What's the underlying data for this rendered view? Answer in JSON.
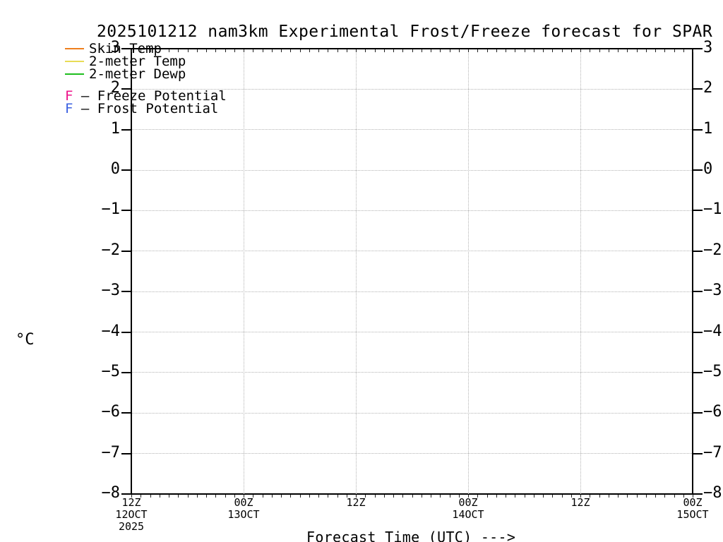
{
  "title": "2025101212 nam3km Experimental Frost/Freeze forecast for SPAR",
  "y_axis_unit": "°C",
  "x_axis_title": "Forecast Time (UTC) --->",
  "legend": {
    "lines": [
      {
        "swatch_color": "#ee7f1e",
        "label": "Skin Temp"
      },
      {
        "swatch_color": "#e8dc55",
        "label": "2-meter Temp"
      },
      {
        "swatch_color": "#1ebe1e",
        "label": "2-meter Dewp"
      }
    ],
    "flags": [
      {
        "symbol": "F",
        "symbol_color": "#ee1289",
        "label": " — Freeze Potential"
      },
      {
        "symbol": "F",
        "symbol_color": "#3a5fe0",
        "label": " — Frost Potential"
      }
    ]
  },
  "chart_data": {
    "type": "line",
    "title": "2025101212 nam3km Experimental Frost/Freeze forecast for SPAR",
    "xlabel": "Forecast Time (UTC) --->",
    "ylabel": "°C",
    "ylim": [
      -8,
      3
    ],
    "y_ticks": [
      3,
      2,
      1,
      0,
      -1,
      -2,
      -3,
      -4,
      -5,
      -6,
      -7,
      -8
    ],
    "x_ticks": [
      {
        "time": "12Z",
        "date": "12OCT",
        "year": "2025"
      },
      {
        "time": "00Z",
        "date": "13OCT"
      },
      {
        "time": "12Z"
      },
      {
        "time": "00Z",
        "date": "14OCT"
      },
      {
        "time": "12Z"
      },
      {
        "time": "00Z",
        "date": "15OCT"
      }
    ],
    "minor_ticks_per_major_interval": 12,
    "grid": "dotted",
    "legend_position": "top-left",
    "series": [
      {
        "name": "Skin Temp",
        "color": "#ee7f1e",
        "values": []
      },
      {
        "name": "2-meter Temp",
        "color": "#e8dc55",
        "values": []
      },
      {
        "name": "2-meter Dewp",
        "color": "#1ebe1e",
        "values": []
      }
    ],
    "point_markers": [
      {
        "symbol": "F",
        "name": "Freeze Potential",
        "color": "#ee1289",
        "values": []
      },
      {
        "symbol": "F",
        "name": "Frost Potential",
        "color": "#3a5fe0",
        "values": []
      }
    ]
  }
}
